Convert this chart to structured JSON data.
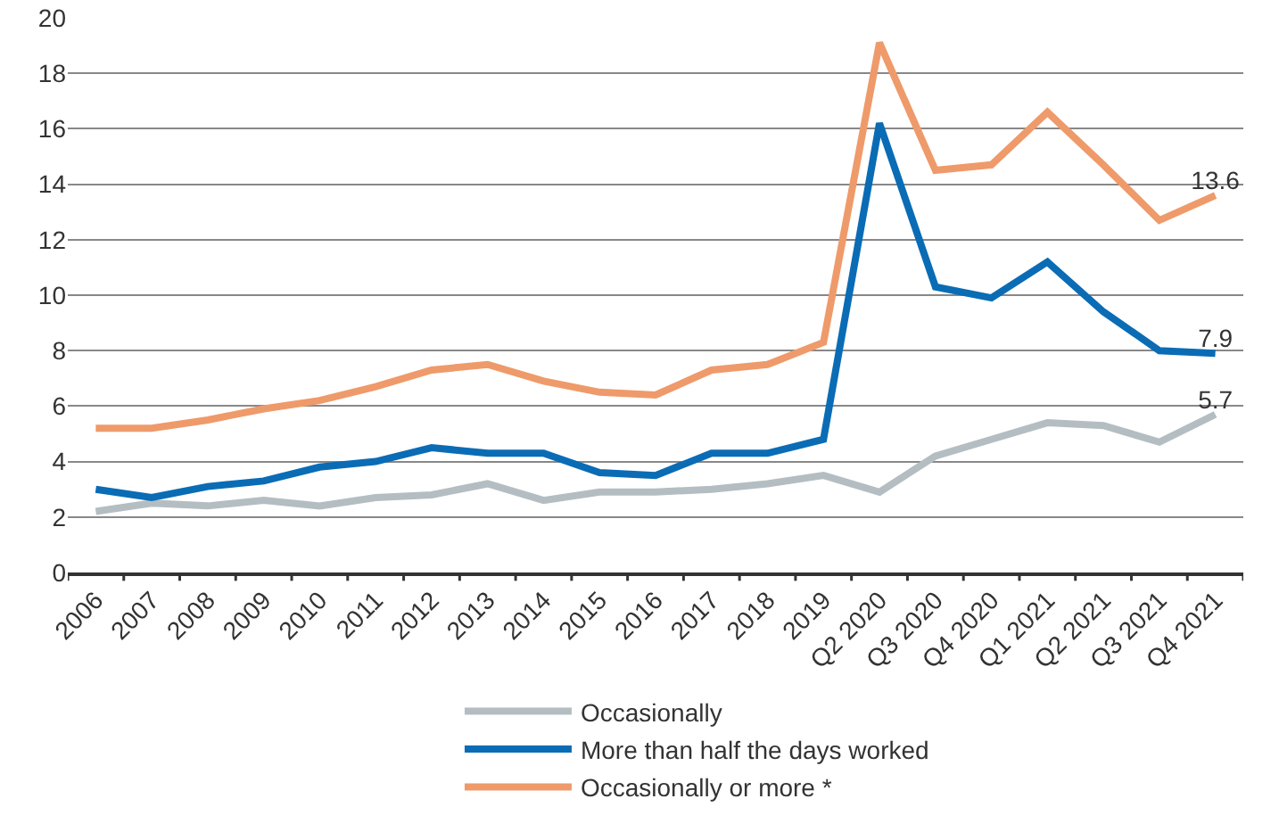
{
  "chart_data": {
    "type": "line",
    "categories": [
      "2006",
      "2007",
      "2008",
      "2009",
      "2010",
      "2011",
      "2012",
      "2013",
      "2014",
      "2015",
      "2016",
      "2017",
      "2018",
      "2019",
      "Q2 2020",
      "Q3 2020",
      "Q4 2020",
      "Q1 2021",
      "Q2 2021",
      "Q3 2021",
      "Q4 2021"
    ],
    "series": [
      {
        "name": "Occasionally",
        "color": "#b4bec2",
        "values": [
          2.2,
          2.5,
          2.4,
          2.6,
          2.4,
          2.7,
          2.8,
          3.2,
          2.6,
          2.9,
          2.9,
          3.0,
          3.2,
          3.5,
          2.9,
          4.2,
          4.8,
          5.4,
          5.3,
          4.7,
          5.7
        ],
        "value_labels": [
          null,
          null,
          null,
          null,
          null,
          null,
          null,
          null,
          null,
          null,
          null,
          null,
          null,
          null,
          null,
          null,
          null,
          null,
          null,
          null,
          "5.7"
        ]
      },
      {
        "name": "More than half the days worked",
        "color": "#0a6cb5",
        "values": [
          3.0,
          2.7,
          3.1,
          3.3,
          3.8,
          4.0,
          4.5,
          4.3,
          4.3,
          3.6,
          3.5,
          4.3,
          4.3,
          4.8,
          16.2,
          10.3,
          9.9,
          11.2,
          9.4,
          8.0,
          7.9
        ],
        "value_labels": [
          null,
          null,
          null,
          null,
          null,
          null,
          null,
          null,
          null,
          null,
          null,
          null,
          null,
          null,
          null,
          null,
          null,
          null,
          null,
          null,
          "7.9"
        ]
      },
      {
        "name": "Occasionally or more *",
        "color": "#ef9a6a",
        "values": [
          5.2,
          5.2,
          5.5,
          5.9,
          6.2,
          6.7,
          7.3,
          7.5,
          6.9,
          6.5,
          6.4,
          7.3,
          7.5,
          8.3,
          19.1,
          14.5,
          14.7,
          16.6,
          14.7,
          12.7,
          13.6
        ],
        "value_labels": [
          null,
          null,
          null,
          null,
          null,
          null,
          null,
          null,
          null,
          null,
          null,
          null,
          null,
          null,
          null,
          null,
          null,
          null,
          null,
          null,
          "13.6"
        ]
      }
    ],
    "ylim": [
      0,
      20
    ],
    "yticks": [
      0,
      2,
      4,
      6,
      8,
      10,
      12,
      14,
      16,
      18,
      20
    ],
    "grid": "y",
    "legend": "bottom",
    "marker": "none",
    "line_style": "solid"
  }
}
